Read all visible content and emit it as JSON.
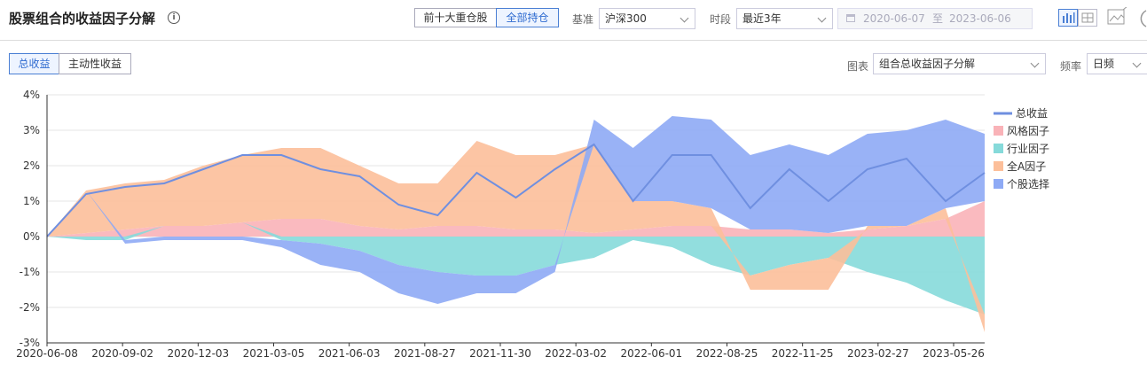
{
  "header": {
    "title": "股票组合的收益因子分解",
    "info_glyph": "i",
    "holdings_tabs": [
      "前十大重仓股",
      "全部持仓"
    ],
    "holdings_active": 1,
    "benchmark_label": "基准",
    "benchmark_value": "沪深300",
    "period_label": "时段",
    "period_value": "最近3年",
    "date_from": "2020-06-07",
    "date_sep": "至",
    "date_to": "2023-06-06"
  },
  "toolbar": {
    "return_tabs": [
      "总收益",
      "主动性收益"
    ],
    "return_active": 0,
    "chart_label": "图表",
    "chart_value": "组合总收益因子分解",
    "freq_label": "频率",
    "freq_value": "日频"
  },
  "colors": {
    "total": "#6f8fe0",
    "style": "#f9b3b8",
    "industry": "#86dada",
    "market": "#fcbf9a",
    "stock": "#8eaaf5",
    "accent": "#2f6bd0"
  },
  "chart_data": {
    "type": "area",
    "title": "",
    "ylim": [
      -3,
      4
    ],
    "yticks": [
      "4%",
      "3%",
      "2%",
      "1%",
      "0%",
      "-1%",
      "-2%",
      "-3%"
    ],
    "xticks": [
      "2020-06-08",
      "2020-09-02",
      "2020-12-03",
      "2021-03-05",
      "2021-06-03",
      "2021-08-27",
      "2021-11-30",
      "2022-03-02",
      "2022-06-01",
      "2022-08-25",
      "2022-11-25",
      "2023-02-27",
      "2023-05-26"
    ],
    "x": [
      "2020-06-08",
      "2020-07-20",
      "2020-09-02",
      "2020-10-20",
      "2020-12-03",
      "2021-01-20",
      "2021-03-05",
      "2021-04-20",
      "2021-06-03",
      "2021-07-15",
      "2021-08-27",
      "2021-10-15",
      "2021-11-30",
      "2022-01-15",
      "2022-03-02",
      "2022-04-15",
      "2022-06-01",
      "2022-07-15",
      "2022-08-25",
      "2022-10-10",
      "2022-11-25",
      "2023-01-10",
      "2023-02-27",
      "2023-04-10",
      "2023-05-26"
    ],
    "legend_position": "right",
    "grid": true,
    "series": [
      {
        "name": "总收益",
        "kind": "line",
        "values": [
          0.0,
          1.2,
          1.4,
          1.5,
          1.9,
          2.3,
          2.3,
          1.9,
          1.7,
          0.9,
          0.6,
          1.8,
          1.1,
          1.9,
          2.6,
          1.0,
          2.3,
          2.3,
          0.8,
          1.9,
          1.0,
          1.9,
          2.2,
          1.0,
          1.8
        ]
      },
      {
        "name": "风格因子",
        "kind": "area",
        "values": [
          0.0,
          0.1,
          0.2,
          0.3,
          0.3,
          0.4,
          0.5,
          0.5,
          0.3,
          0.2,
          0.3,
          0.3,
          0.2,
          0.2,
          0.1,
          0.2,
          0.3,
          0.3,
          0.2,
          0.2,
          0.1,
          0.2,
          0.3,
          0.5,
          1.0
        ]
      },
      {
        "name": "行业因子",
        "kind": "area",
        "values": [
          0.0,
          -0.1,
          -0.1,
          0.0,
          0.0,
          0.0,
          -0.1,
          -0.2,
          -0.4,
          -0.8,
          -1.0,
          -1.1,
          -1.1,
          -0.8,
          -0.6,
          -0.1,
          -0.3,
          -0.8,
          -1.1,
          -0.8,
          -0.6,
          -1.0,
          -1.3,
          -1.8,
          -2.2
        ]
      },
      {
        "name": "全A因子",
        "kind": "area",
        "values": [
          0.0,
          1.2,
          1.3,
          1.3,
          1.7,
          1.9,
          2.0,
          2.0,
          1.7,
          1.3,
          1.2,
          2.4,
          2.1,
          2.1,
          2.5,
          0.8,
          0.7,
          0.5,
          -0.4,
          -0.7,
          -0.9,
          0.1,
          0.0,
          0.3,
          -0.5
        ]
      },
      {
        "name": "个股选择",
        "kind": "area",
        "values": [
          0.0,
          0.0,
          -0.1,
          -0.1,
          -0.1,
          -0.1,
          -0.2,
          -0.6,
          -0.6,
          -0.8,
          -0.9,
          -0.5,
          -0.5,
          -0.2,
          0.7,
          1.5,
          2.4,
          2.5,
          2.1,
          2.4,
          2.2,
          2.6,
          2.7,
          2.5,
          1.9
        ]
      }
    ]
  }
}
